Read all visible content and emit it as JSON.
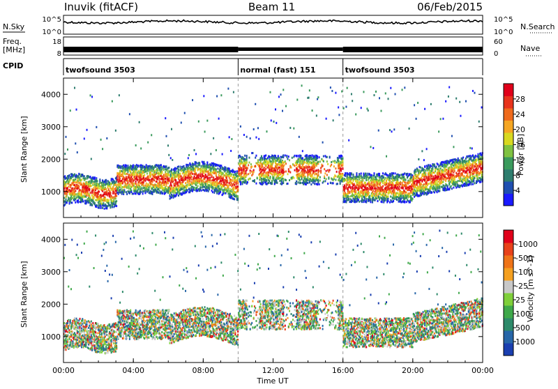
{
  "header": {
    "station": "Inuvik (fitACF)",
    "beam": "Beam 11",
    "date": "06/Feb/2015"
  },
  "strips": {
    "nsky_label": "N.Sky",
    "nsky_ticks": [
      "10^5",
      "10^0"
    ],
    "nsearch_label": "N.Search",
    "nsearch_ticks": [
      "10^5",
      "10^0"
    ],
    "freq_label": "Freq.",
    "freq_unit": "[MHz]",
    "freq_ticks": [
      "18",
      "8"
    ],
    "nave_label": "Nave",
    "nave_ticks": [
      "60",
      "0"
    ],
    "cpid_label": "CPID",
    "cpid_segments": [
      {
        "name": "twofsound 3503",
        "start_hour": 0,
        "end_hour": 10
      },
      {
        "name": "normal (fast) 151",
        "start_hour": 10,
        "end_hour": 16
      },
      {
        "name": "twofsound 3503",
        "start_hour": 16,
        "end_hour": 24
      }
    ]
  },
  "chart_data": [
    {
      "type": "heatmap",
      "quantity": "power",
      "ylabel": "Slant Range [km]",
      "yticks": [
        1000,
        2000,
        3000,
        4000
      ],
      "ylim": [
        200,
        4500
      ],
      "xlim_hours": [
        0,
        24
      ],
      "colorbar": {
        "label": "Power [dB]",
        "ticks": [
          "4",
          "8",
          "12",
          "16",
          "20",
          "24",
          "28"
        ],
        "colors": [
          "#1a1aff",
          "#1f4fb0",
          "#2e7d6e",
          "#3a9a5c",
          "#7fc241",
          "#d8d820",
          "#f5a623",
          "#ef6a1c",
          "#e8331c",
          "#e0001a"
        ]
      }
    },
    {
      "type": "heatmap",
      "quantity": "velocity",
      "ylabel": "Slant Range [km]",
      "yticks": [
        1000,
        2000,
        3000,
        4000
      ],
      "ylim": [
        200,
        4500
      ],
      "xlim_hours": [
        0,
        24
      ],
      "xlabel": "Time UT",
      "xticks": [
        "00:00",
        "04:00",
        "08:00",
        "12:00",
        "16:00",
        "20:00",
        "00:00"
      ],
      "colorbar": {
        "label": "Velocity [m s^-1]",
        "ticks": [
          "1000",
          "500",
          "100",
          "25",
          "-25",
          "-100",
          "-500",
          "-1000"
        ],
        "colors": [
          "#1a3fb0",
          "#2766a8",
          "#2e8a6a",
          "#3fa84a",
          "#7fcf3a",
          "#c8c8c8",
          "#f5a020",
          "#ef7418",
          "#e8421a",
          "#e0001a"
        ]
      }
    }
  ]
}
